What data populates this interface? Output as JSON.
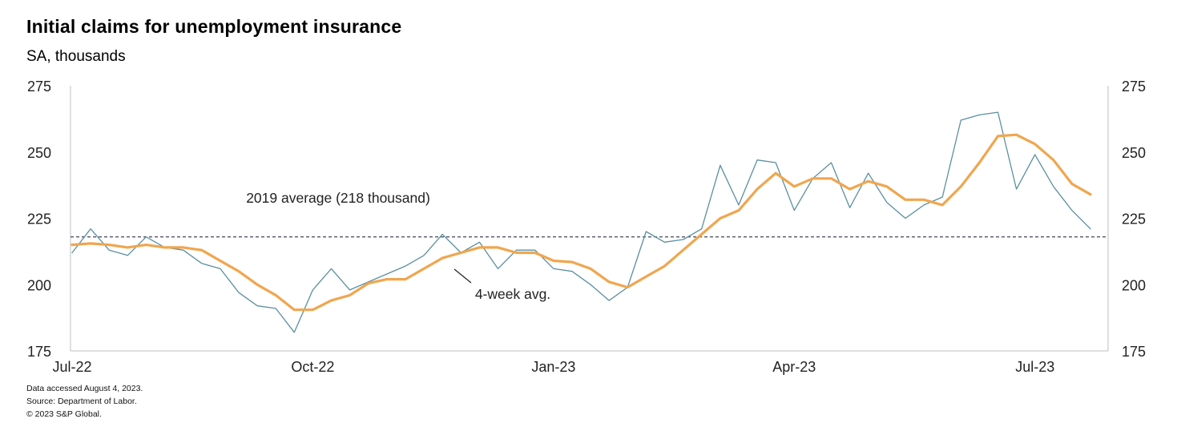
{
  "title": "Initial claims for unemployment insurance",
  "subtitle": "SA, thousands",
  "notes": [
    "Data accessed August 4, 2023.",
    "Source: Department of Labor.",
    "© 2023 S&P Global."
  ],
  "chart_data": {
    "type": "line",
    "title": "Initial claims for unemployment insurance",
    "subtitle": "SA, thousands",
    "ylim": [
      175,
      275
    ],
    "yticks": [
      175,
      200,
      225,
      250,
      275
    ],
    "ytick_labels": [
      "175",
      "200",
      "225",
      "250",
      "275"
    ],
    "xtick_labels": [
      "Jul-22",
      "Oct-22",
      "Jan-23",
      "Apr-23",
      "Jul-23"
    ],
    "xtick_weeks": [
      0,
      13,
      26,
      39,
      52
    ],
    "grid": false,
    "series": [
      {
        "name": "",
        "color": "#5b8fa0",
        "values": [
          212,
          221,
          213,
          211,
          218,
          214,
          213,
          208,
          206,
          197,
          192,
          191,
          182,
          198,
          206,
          198,
          201,
          204,
          207,
          211,
          219,
          212,
          216,
          206,
          213,
          213,
          206,
          205,
          200,
          194,
          199,
          220,
          216,
          217,
          221,
          245,
          230,
          247,
          246,
          228,
          240,
          246,
          229,
          242,
          231,
          225,
          230,
          233,
          262,
          264,
          265,
          236,
          249,
          237,
          228,
          221
        ]
      },
      {
        "name": "4-week avg.",
        "color": "#f0a64e",
        "values": [
          215,
          215.5,
          215,
          214,
          215,
          214,
          214,
          213,
          209,
          205,
          200,
          196,
          190.5,
          190.5,
          194,
          196,
          200.5,
          202,
          202,
          206,
          210,
          212,
          214,
          214,
          212,
          212,
          209,
          208.5,
          206,
          201,
          199,
          203,
          207,
          213,
          219,
          225,
          228,
          236,
          242,
          237,
          240,
          240,
          236,
          239,
          237,
          232,
          232,
          230,
          237,
          246,
          256,
          256.5,
          253,
          247,
          238,
          234
        ]
      }
    ],
    "reference_line": {
      "value": 218,
      "label": "2019 average  (218 thousand)",
      "style": "dashed",
      "color": "#555566"
    },
    "annotations": [
      {
        "text": "4-week  avg.",
        "points_to_series": "4-week avg."
      }
    ]
  }
}
